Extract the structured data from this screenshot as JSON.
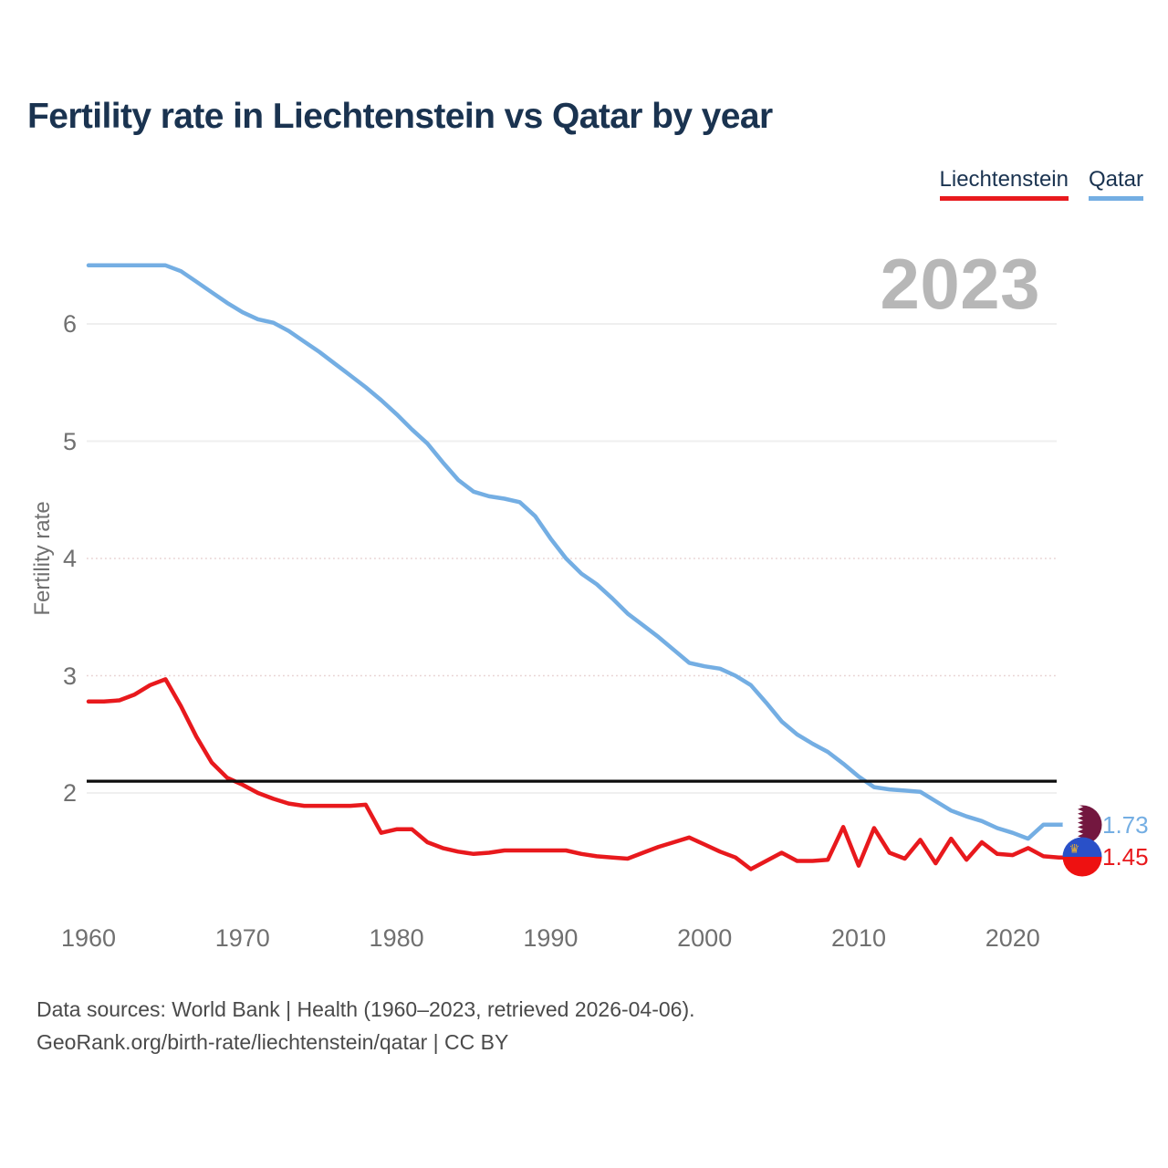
{
  "title": "Fertility rate in Liechtenstein vs Qatar by year",
  "legend": [
    {
      "label": "Liechtenstein",
      "color": "#e8191d"
    },
    {
      "label": "Qatar",
      "color": "#74aee3"
    }
  ],
  "watermark": "2023",
  "footer": {
    "line1": "Data sources: World Bank | Health (1960–2023, retrieved 2026-04-06).",
    "line2": "GeoRank.org/birth-rate/liechtenstein/qatar | CC BY"
  },
  "chart_data": {
    "type": "line",
    "title": "Fertility rate in Liechtenstein vs Qatar by year",
    "xlabel": "",
    "ylabel": "Fertility rate",
    "x_ticks": [
      1960,
      1970,
      1980,
      1990,
      2000,
      2010,
      2020
    ],
    "y_ticks": [
      2,
      3,
      4,
      5,
      6
    ],
    "ylim": [
      1.2,
      6.8
    ],
    "xlim": [
      1960,
      2023
    ],
    "grid": true,
    "legend_position": "top-right",
    "reference_line": 2.1,
    "colors": {
      "grid_solid": "#efefef",
      "grid_dotted": "#e8d2d2",
      "reference": "#0d0d0d",
      "axis_text": "#707070",
      "title_text": "#1a3350",
      "watermark_text": "#b7b7b7"
    },
    "x": [
      1960,
      1961,
      1962,
      1963,
      1964,
      1965,
      1966,
      1967,
      1968,
      1969,
      1970,
      1971,
      1972,
      1973,
      1974,
      1975,
      1976,
      1977,
      1978,
      1979,
      1980,
      1981,
      1982,
      1983,
      1984,
      1985,
      1986,
      1987,
      1988,
      1989,
      1990,
      1991,
      1992,
      1993,
      1994,
      1995,
      1996,
      1997,
      1998,
      1999,
      2000,
      2001,
      2002,
      2003,
      2004,
      2005,
      2006,
      2007,
      2008,
      2009,
      2010,
      2011,
      2012,
      2013,
      2014,
      2015,
      2016,
      2017,
      2018,
      2019,
      2020,
      2021,
      2022,
      2023
    ],
    "series": [
      {
        "name": "Qatar",
        "color": "#74aee3",
        "end_value": "1.73",
        "values": [
          6.5,
          6.5,
          6.5,
          6.5,
          6.5,
          6.5,
          6.45,
          6.36,
          6.27,
          6.18,
          6.1,
          6.04,
          6.01,
          5.94,
          5.85,
          5.76,
          5.66,
          5.56,
          5.46,
          5.35,
          5.23,
          5.1,
          4.98,
          4.82,
          4.67,
          4.57,
          4.53,
          4.51,
          4.48,
          4.36,
          4.17,
          4.0,
          3.87,
          3.78,
          3.66,
          3.53,
          3.43,
          3.33,
          3.22,
          3.11,
          3.08,
          3.06,
          3.0,
          2.92,
          2.77,
          2.61,
          2.5,
          2.42,
          2.35,
          2.25,
          2.14,
          2.05,
          2.03,
          2.02,
          2.01,
          1.93,
          1.85,
          1.8,
          1.76,
          1.7,
          1.66,
          1.61,
          1.73,
          1.73
        ]
      },
      {
        "name": "Liechtenstein",
        "color": "#e8191d",
        "end_value": "1.45",
        "values": [
          2.78,
          2.78,
          2.79,
          2.84,
          2.92,
          2.97,
          2.74,
          2.48,
          2.26,
          2.13,
          2.07,
          2.0,
          1.95,
          1.91,
          1.89,
          1.89,
          1.89,
          1.89,
          1.9,
          1.66,
          1.69,
          1.69,
          1.58,
          1.53,
          1.5,
          1.48,
          1.49,
          1.51,
          1.51,
          1.51,
          1.51,
          1.51,
          1.48,
          1.46,
          1.45,
          1.44,
          1.49,
          1.54,
          1.58,
          1.62,
          1.56,
          1.5,
          1.45,
          1.35,
          1.42,
          1.49,
          1.42,
          1.42,
          1.43,
          1.71,
          1.38,
          1.7,
          1.49,
          1.44,
          1.6,
          1.4,
          1.61,
          1.43,
          1.58,
          1.48,
          1.47,
          1.53,
          1.46,
          1.45
        ]
      }
    ]
  }
}
